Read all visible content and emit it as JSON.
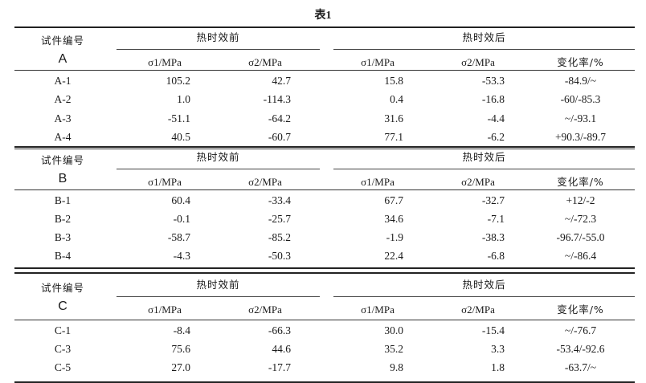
{
  "title": "表1",
  "headers": {
    "specimen_id": "试件编号",
    "before": "热时效前",
    "after": "热时效后",
    "sigma1": "σ1/MPa",
    "sigma2": "σ2/MPa",
    "change_rate": "变化率/%"
  },
  "groups": [
    {
      "label": "A",
      "rows": [
        {
          "id": "A-1",
          "before_s1": "105.2",
          "before_s2": "42.7",
          "after_s1": "15.8",
          "after_s2": "-53.3",
          "rate": "-84.9/~"
        },
        {
          "id": "A-2",
          "before_s1": "1.0",
          "before_s2": "-114.3",
          "after_s1": "0.4",
          "after_s2": "-16.8",
          "rate": "-60/-85.3"
        },
        {
          "id": "A-3",
          "before_s1": "-51.1",
          "before_s2": "-64.2",
          "after_s1": "31.6",
          "after_s2": "-4.4",
          "rate": "~/-93.1"
        },
        {
          "id": "A-4",
          "before_s1": "40.5",
          "before_s2": "-60.7",
          "after_s1": "77.1",
          "after_s2": "-6.2",
          "rate": "+90.3/-89.7"
        }
      ]
    },
    {
      "label": "B",
      "rows": [
        {
          "id": "B-1",
          "before_s1": "60.4",
          "before_s2": "-33.4",
          "after_s1": "67.7",
          "after_s2": "-32.7",
          "rate": "+12/-2"
        },
        {
          "id": "B-2",
          "before_s1": "-0.1",
          "before_s2": "-25.7",
          "after_s1": "34.6",
          "after_s2": "-7.1",
          "rate": "~/-72.3"
        },
        {
          "id": "B-3",
          "before_s1": "-58.7",
          "before_s2": "-85.2",
          "after_s1": "-1.9",
          "after_s2": "-38.3",
          "rate": "-96.7/-55.0"
        },
        {
          "id": "B-4",
          "before_s1": "-4.3",
          "before_s2": "-50.3",
          "after_s1": "22.4",
          "after_s2": "-6.8",
          "rate": "~/-86.4"
        }
      ]
    },
    {
      "label": "C",
      "rows": [
        {
          "id": "C-1",
          "before_s1": "-8.4",
          "before_s2": "-66.3",
          "after_s1": "30.0",
          "after_s2": "-15.4",
          "rate": "~/-76.7"
        },
        {
          "id": "C-3",
          "before_s1": "75.6",
          "before_s2": "44.6",
          "after_s1": "35.2",
          "after_s2": "3.3",
          "rate": "-53.4/-92.6"
        },
        {
          "id": "C-5",
          "before_s1": "27.0",
          "before_s2": "-17.7",
          "after_s1": "9.8",
          "after_s2": "1.8",
          "rate": "-63.7/~"
        }
      ]
    }
  ]
}
